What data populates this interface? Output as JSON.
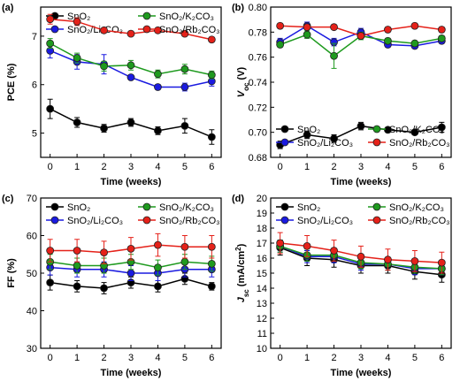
{
  "chart_data": [
    {
      "type": "line",
      "label": "(a)",
      "xlabel": "Time (weeks)",
      "ylabel": [
        {
          "text": "PCE (%)",
          "style": "normal"
        }
      ],
      "x": [
        0,
        1,
        2,
        3,
        4,
        5,
        6
      ],
      "xlim": [
        -0.35,
        6.35
      ],
      "xticks": [
        0,
        1,
        2,
        3,
        4,
        5,
        6
      ],
      "ylim": [
        4.5,
        7.6
      ],
      "yticks": [
        5,
        6,
        7
      ],
      "legend": "upper",
      "series": [
        {
          "name": "SnO₂",
          "color": "#000000",
          "values": [
            5.5,
            5.22,
            5.1,
            5.22,
            5.05,
            5.15,
            4.92
          ],
          "errors": [
            0.2,
            0.1,
            0.08,
            0.08,
            0.08,
            0.15,
            0.15
          ]
        },
        {
          "name": "SnO₂/Li₂CO₃",
          "color": "#1a1ae0",
          "values": [
            6.7,
            6.47,
            6.42,
            6.15,
            5.95,
            5.95,
            6.07
          ],
          "errors": [
            0.15,
            0.15,
            0.2,
            0.05,
            0.05,
            0.08,
            0.1
          ]
        },
        {
          "name": "SnO₂/K₂CO₃",
          "color": "#1e9a1e",
          "values": [
            6.85,
            6.55,
            6.38,
            6.4,
            6.22,
            6.32,
            6.2
          ],
          "errors": [
            0.1,
            0.1,
            0.1,
            0.1,
            0.08,
            0.1,
            0.08
          ]
        },
        {
          "name": "SnO₂/Rb₂CO₃",
          "color": "#e52119",
          "values": [
            7.35,
            7.3,
            7.12,
            7.05,
            7.12,
            7.05,
            6.93
          ],
          "errors": [
            0.1,
            0.08,
            0.05,
            0.05,
            0.05,
            0.05,
            0.05
          ]
        }
      ]
    },
    {
      "type": "line",
      "label": "(b)",
      "xlabel": "Time (weeks)",
      "ylabel": [
        {
          "text": "V",
          "style": "italic"
        },
        {
          "text": "oc",
          "style": "sub"
        },
        {
          "text": " (V)",
          "style": "normal"
        }
      ],
      "x": [
        0,
        1,
        2,
        3,
        4,
        5,
        6
      ],
      "xlim": [
        -0.35,
        6.35
      ],
      "xticks": [
        0,
        1,
        2,
        3,
        4,
        5,
        6
      ],
      "ylim": [
        0.68,
        0.8
      ],
      "yticks": [
        0.68,
        {
          "value": 0.7,
          "label": "0.70"
        },
        0.72,
        0.74,
        0.76,
        0.78,
        {
          "value": 0.8,
          "label": "0.80"
        }
      ],
      "legend": "lower",
      "series": [
        {
          "name": "SnO₂",
          "color": "#000000",
          "values": [
            0.69,
            0.698,
            0.695,
            0.705,
            0.702,
            0.7,
            0.704
          ],
          "errors": [
            0.003,
            0.003,
            0.003,
            0.003,
            0.002,
            0.002,
            0.004
          ]
        },
        {
          "name": "SnO₂/Li₂CO₃",
          "color": "#1a1ae0",
          "values": [
            0.772,
            0.785,
            0.772,
            0.78,
            0.77,
            0.769,
            0.773
          ],
          "errors": [
            0.003,
            0.003,
            0.003,
            0.003,
            0.002,
            0.002,
            0.002
          ]
        },
        {
          "name": "SnO₂/K₂CO₃",
          "color": "#1e9a1e",
          "values": [
            0.77,
            0.778,
            0.761,
            0.777,
            0.773,
            0.771,
            0.775
          ],
          "errors": [
            0.002,
            0.003,
            0.01,
            0.003,
            0.002,
            0.002,
            0.002
          ]
        },
        {
          "name": "SnO₂/Rb₂CO₃",
          "color": "#e52119",
          "values": [
            0.785,
            0.784,
            0.784,
            0.777,
            0.782,
            0.785,
            0.782
          ],
          "errors": [
            0.002,
            0.002,
            0.002,
            0.002,
            0.002,
            0.002,
            0.002
          ]
        }
      ]
    },
    {
      "type": "line",
      "label": "(c)",
      "xlabel": "Time (weeks)",
      "ylabel": [
        {
          "text": "FF (%)",
          "style": "normal"
        }
      ],
      "x": [
        0,
        1,
        2,
        3,
        4,
        5,
        6
      ],
      "xlim": [
        -0.35,
        6.35
      ],
      "xticks": [
        0,
        1,
        2,
        3,
        4,
        5,
        6
      ],
      "ylim": [
        30,
        70
      ],
      "yticks": [
        30,
        40,
        50,
        60,
        70
      ],
      "legend": "upper",
      "series": [
        {
          "name": "SnO₂",
          "color": "#000000",
          "values": [
            47.5,
            46.5,
            46,
            47.5,
            46.5,
            48.5,
            46.5
          ],
          "errors": [
            2,
            1.5,
            1.5,
            1.5,
            1.5,
            1.5,
            1
          ]
        },
        {
          "name": "SnO₂/Li₂CO₃",
          "color": "#1a1ae0",
          "values": [
            51.5,
            51,
            51,
            50,
            50,
            51,
            51
          ],
          "errors": [
            2,
            2,
            2,
            2,
            2,
            2,
            2
          ]
        },
        {
          "name": "SnO₂/K₂CO₃",
          "color": "#1e9a1e",
          "values": [
            53,
            52,
            52,
            53,
            51.5,
            53,
            52.5
          ],
          "errors": [
            2,
            2,
            2,
            2,
            2,
            2,
            2
          ]
        },
        {
          "name": "SnO₂/Rb₂CO₃",
          "color": "#e52119",
          "values": [
            56,
            56,
            55.5,
            56.5,
            57.5,
            57,
            57
          ],
          "errors": [
            3,
            3,
            3,
            3,
            3,
            3,
            3
          ]
        }
      ]
    },
    {
      "type": "line",
      "label": "(d)",
      "xlabel": "Time (weeks)",
      "ylabel": [
        {
          "text": "J",
          "style": "italic"
        },
        {
          "text": "sc",
          "style": "sub"
        },
        {
          "text": " (mA/cm",
          "style": "normal"
        },
        {
          "text": "2",
          "style": "sup"
        },
        {
          "text": ")",
          "style": "normal"
        }
      ],
      "x": [
        0,
        1,
        2,
        3,
        4,
        5,
        6
      ],
      "xlim": [
        -0.35,
        6.35
      ],
      "xticks": [
        0,
        1,
        2,
        3,
        4,
        5,
        6
      ],
      "ylim": [
        10,
        20
      ],
      "yticks": [
        10,
        11,
        12,
        13,
        14,
        15,
        16,
        17,
        18,
        19,
        20
      ],
      "legend": "upper",
      "series": [
        {
          "name": "SnO₂",
          "color": "#000000",
          "values": [
            16.7,
            16,
            15.9,
            15.5,
            15.5,
            15.1,
            14.9
          ],
          "errors": [
            0.5,
            0.5,
            0.5,
            0.5,
            0.5,
            0.5,
            0.5
          ]
        },
        {
          "name": "SnO₂/Li₂CO₃",
          "color": "#1a1ae0",
          "values": [
            16.8,
            16.1,
            16.1,
            15.6,
            15.6,
            15.3,
            15.3
          ],
          "errors": [
            0.4,
            0.4,
            0.4,
            0.4,
            0.4,
            0.4,
            0.4
          ]
        },
        {
          "name": "SnO₂/K₂CO₃",
          "color": "#1e9a1e",
          "values": [
            16.8,
            16.2,
            16.2,
            15.7,
            15.6,
            15.4,
            15.3
          ],
          "errors": [
            0.4,
            0.4,
            0.4,
            0.4,
            0.4,
            0.4,
            0.4
          ]
        },
        {
          "name": "SnO₂/Rb₂CO₃",
          "color": "#e52119",
          "values": [
            17,
            16.8,
            16.5,
            16.1,
            15.9,
            15.8,
            15.7
          ],
          "errors": [
            0.7,
            0.7,
            0.7,
            0.7,
            0.7,
            0.7,
            0.7
          ]
        }
      ]
    }
  ]
}
